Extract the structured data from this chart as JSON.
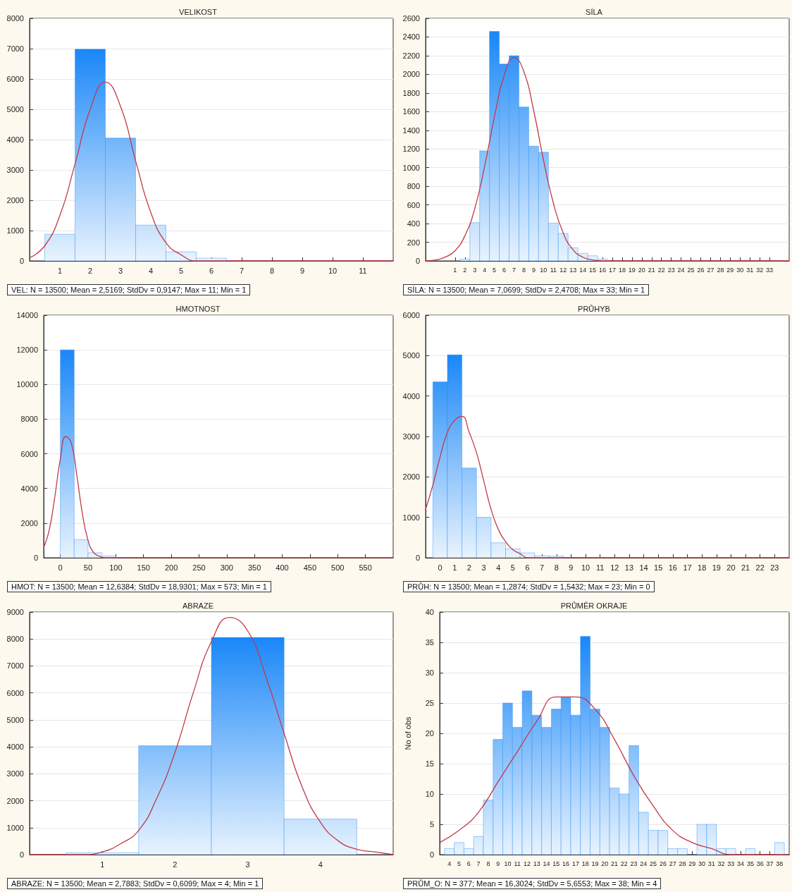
{
  "chart_data": [
    {
      "type": "histogram",
      "title": "VELIKOST",
      "color": "#1a87f8",
      "grid": "y",
      "xlim": [
        0,
        12
      ],
      "xticks": [
        1,
        2,
        3,
        4,
        5,
        6,
        7,
        8,
        9,
        10,
        11
      ],
      "ylim": [
        0,
        8000
      ],
      "yticks": [
        0,
        1000,
        2000,
        3000,
        4000,
        5000,
        6000,
        7000,
        8000
      ],
      "bins": [
        0.5,
        1.5,
        2.5,
        3.5,
        4.5,
        5.5,
        6.5
      ],
      "values": [
        880,
        6980,
        4050,
        1180,
        300,
        90
      ],
      "series": [
        {
          "type": "line",
          "marker": "none",
          "color": "#c03a48",
          "x": [
            0,
            0.5,
            1,
            1.5,
            2,
            2.5,
            3,
            3.5,
            4,
            4.5,
            5,
            5.5,
            6,
            7,
            12
          ],
          "values": [
            100,
            500,
            1500,
            3200,
            5000,
            5900,
            5100,
            3300,
            1600,
            600,
            200,
            0,
            0,
            0,
            0
          ]
        }
      ],
      "annotations": [
        "VEL:   N = 13500; Mean = 2,5169; StdDv = 0,9147; Max = 11; Min = 1"
      ]
    },
    {
      "type": "histogram",
      "title": "SÍLA",
      "color": "#1a87f8",
      "grid": "y",
      "xlim": [
        -2,
        35
      ],
      "xticks": [
        1,
        2,
        3,
        4,
        5,
        6,
        7,
        8,
        9,
        10,
        11,
        12,
        13,
        14,
        15,
        16,
        17,
        18,
        19,
        20,
        21,
        22,
        23,
        24,
        25,
        26,
        27,
        28,
        29,
        30,
        31,
        32,
        33
      ],
      "ylim": [
        0,
        2600
      ],
      "yticks": [
        0,
        200,
        400,
        600,
        800,
        1000,
        1200,
        1400,
        1600,
        1800,
        2000,
        2200,
        2400,
        2600
      ],
      "bins": [
        1.5,
        2.5,
        3.5,
        4.5,
        5.5,
        6.5,
        7.5,
        8.5,
        9.5,
        10.5,
        11.5,
        12.5,
        13.5,
        14.5,
        15.5,
        16.5
      ],
      "values": [
        20,
        410,
        1180,
        2460,
        2110,
        2200,
        1650,
        1230,
        1165,
        405,
        295,
        140,
        80,
        55,
        20
      ],
      "series": [
        {
          "type": "line",
          "marker": "none",
          "color": "#c03a48",
          "x": [
            -2,
            -1,
            0,
            1,
            2,
            3,
            4,
            5,
            6,
            7,
            8,
            9,
            10,
            11,
            12,
            13,
            14,
            15,
            16,
            17,
            35
          ],
          "values": [
            0,
            10,
            40,
            110,
            270,
            560,
            1010,
            1540,
            1990,
            2180,
            2030,
            1610,
            1080,
            620,
            300,
            120,
            40,
            10,
            0,
            0,
            0
          ]
        }
      ],
      "annotations": [
        "SÍLA:   N = 13500; Mean = 7,0699; StdDv = 2,4708; Max = 33; Min = 1"
      ]
    },
    {
      "type": "histogram",
      "title": "HMOTNOST",
      "color": "#1a87f8",
      "grid": "y",
      "xlim": [
        -30,
        600
      ],
      "xticks": [
        0,
        50,
        100,
        150,
        200,
        250,
        300,
        350,
        400,
        450,
        500,
        550
      ],
      "ylim": [
        0,
        14000
      ],
      "yticks": [
        0,
        2000,
        4000,
        6000,
        8000,
        10000,
        12000,
        14000
      ],
      "bins": [
        0,
        25,
        50,
        75,
        100
      ],
      "values": [
        12000,
        1050,
        290,
        100
      ],
      "series": [
        {
          "type": "line",
          "marker": "none",
          "color": "#c03a48",
          "x": [
            -30,
            -20,
            -10,
            0,
            10,
            20,
            30,
            40,
            50,
            60,
            70,
            80,
            90,
            600
          ],
          "values": [
            600,
            1600,
            3500,
            5700,
            7000,
            6600,
            4700,
            2500,
            1000,
            300,
            100,
            0,
            0,
            0
          ]
        }
      ],
      "annotations": [
        "HMOT:   N = 13500; Mean = 12,6384; StdDv = 18,9301; Max = 573; Min = 1"
      ]
    },
    {
      "type": "histogram",
      "title": "PRŮHYB",
      "color": "#1a87f8",
      "grid": "y",
      "xlim": [
        -1,
        24
      ],
      "xticks": [
        0,
        1,
        2,
        3,
        4,
        5,
        6,
        7,
        8,
        9,
        10,
        11,
        12,
        13,
        14,
        15,
        16,
        17,
        18,
        19,
        20,
        21,
        22,
        23
      ],
      "ylim": [
        0,
        6000
      ],
      "yticks": [
        0,
        1000,
        2000,
        3000,
        4000,
        5000,
        6000
      ],
      "bins": [
        -0.5,
        0.5,
        1.5,
        2.5,
        3.5,
        4.5,
        5.5,
        6.5,
        7.5,
        8.5
      ],
      "values": [
        4350,
        5020,
        2220,
        1000,
        370,
        220,
        120,
        50,
        40
      ],
      "series": [
        {
          "type": "line",
          "marker": "none",
          "color": "#c03a48",
          "x": [
            -1,
            -0.5,
            0,
            0.5,
            1,
            1.5,
            2,
            2.5,
            3,
            3.5,
            4,
            4.5,
            5,
            5.5,
            6,
            6.5,
            7,
            24
          ],
          "values": [
            1200,
            1800,
            2500,
            3100,
            3400,
            3500,
            3100,
            2600,
            1900,
            1200,
            700,
            400,
            200,
            100,
            0,
            0,
            0,
            0
          ]
        }
      ],
      "annotations": [
        "PRŮH:   N = 13500; Mean = 1,2874; StdDv = 1,5432; Max = 23; Min = 0"
      ]
    },
    {
      "type": "histogram",
      "title": "ABRAZE",
      "color": "#1a87f8",
      "grid": "y",
      "xlim": [
        0,
        5
      ],
      "xticks": [
        1,
        2,
        3,
        4
      ],
      "ylim": [
        0,
        9000
      ],
      "yticks": [
        0,
        1000,
        2000,
        3000,
        4000,
        5000,
        6000,
        7000,
        8000,
        9000
      ],
      "bins": [
        0.5,
        1.5,
        2.5,
        3.5,
        4.5
      ],
      "values": [
        70,
        4040,
        8060,
        1320
      ],
      "series": [
        {
          "type": "line",
          "marker": "none",
          "color": "#c03a48",
          "x": [
            0,
            0.5,
            0.75,
            1,
            1.25,
            1.5,
            1.75,
            2,
            2.25,
            2.5,
            2.75,
            3,
            3.25,
            3.5,
            3.75,
            4,
            4.25,
            4.5,
            4.75,
            5
          ],
          "values": [
            0,
            0,
            0,
            100,
            400,
            900,
            2100,
            3800,
            6000,
            7900,
            8800,
            8300,
            6600,
            4500,
            2500,
            1200,
            500,
            200,
            100,
            0
          ]
        }
      ],
      "annotations": [
        "ABRAZE:   N = 13500; Mean = 2,7883; StdDv = 0,6099; Max = 4; Min = 1"
      ]
    },
    {
      "type": "histogram",
      "title": "PRŮMĚR OKRAJE",
      "ylabel": "No of obs",
      "color": "#1a87f8",
      "grid": "y",
      "xlim": [
        3,
        39
      ],
      "xticks": [
        4,
        5,
        6,
        7,
        8,
        9,
        10,
        11,
        12,
        13,
        14,
        15,
        16,
        17,
        18,
        19,
        20,
        21,
        22,
        23,
        24,
        25,
        26,
        27,
        28,
        29,
        30,
        31,
        32,
        33,
        34,
        35,
        36,
        37,
        38
      ],
      "ylim": [
        0,
        40
      ],
      "yticks": [
        0,
        5,
        10,
        15,
        20,
        25,
        30,
        35,
        40
      ],
      "bins": [
        3.5,
        4.5,
        5.5,
        6.5,
        7.5,
        8.5,
        9.5,
        10.5,
        11.5,
        12.5,
        13.5,
        14.5,
        15.5,
        16.5,
        17.5,
        18.5,
        19.5,
        20.5,
        21.5,
        22.5,
        23.5,
        24.5,
        25.5,
        26.5,
        27.5,
        28.5,
        29.5,
        30.5,
        31.5,
        32.5,
        33.5,
        34.5,
        35.5,
        36.5,
        37.5,
        38.5
      ],
      "values": [
        1,
        2,
        1,
        3,
        9,
        19,
        25,
        21,
        27,
        23,
        21,
        24,
        26,
        23,
        36,
        24,
        21,
        11,
        10,
        18,
        7,
        4,
        4,
        1,
        1,
        0,
        5,
        5,
        1,
        1,
        0,
        1,
        0,
        0,
        2
      ],
      "series": [
        {
          "type": "line",
          "marker": "none",
          "color": "#c03a48",
          "x": [
            3,
            5,
            7,
            9,
            11,
            13,
            15,
            17,
            19,
            21,
            23,
            25,
            27,
            29,
            31,
            33,
            35,
            37,
            39
          ],
          "values": [
            2,
            4,
            7,
            12,
            17,
            22,
            26,
            26,
            24,
            19,
            13,
            8,
            4,
            2,
            1,
            0,
            0,
            0,
            0
          ]
        }
      ],
      "annotations": [
        "PRŮM_O:   N = 377; Mean = 16,3024; StdDv = 5,6553; Max = 38; Min = 4"
      ]
    }
  ]
}
